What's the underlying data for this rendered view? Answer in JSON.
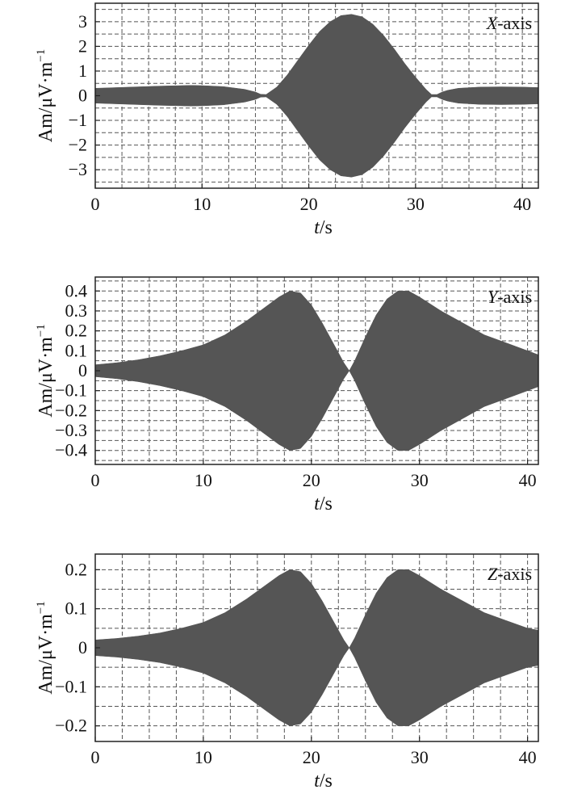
{
  "chart_data": [
    {
      "type": "area",
      "legend": {
        "label_italic": "X",
        "label_rest": "-axis",
        "position": "top-right"
      },
      "xlabel": {
        "italic": "t",
        "rest": "/s"
      },
      "ylabel": {
        "text": "Am/μV·m",
        "sup": "−1"
      },
      "xlim": [
        0,
        41.5
      ],
      "ylim": [
        -3.75,
        3.75
      ],
      "xticks": [
        "0",
        "10",
        "20",
        "30",
        "40"
      ],
      "xtick_values": [
        0,
        10,
        20,
        30,
        40
      ],
      "yticks": [
        "3",
        "2",
        "1",
        "0",
        "−1",
        "−2",
        "−3"
      ],
      "ytick_values": [
        3,
        2,
        1,
        0,
        -1,
        -2,
        -3
      ],
      "grid": true,
      "color": "#555555",
      "series": [
        {
          "t": [
            0,
            2,
            4,
            6,
            8,
            9,
            10,
            12,
            14,
            15,
            15.5,
            16,
            17,
            18,
            19,
            20,
            21,
            22,
            23,
            24,
            25,
            26,
            27,
            28,
            29,
            30,
            31,
            31.5,
            32,
            32.5,
            33,
            34,
            36,
            38,
            40,
            41.5
          ],
          "envelope": [
            0.3,
            0.33,
            0.36,
            0.39,
            0.41,
            0.42,
            0.41,
            0.37,
            0.26,
            0.15,
            0.06,
            0.05,
            0.35,
            0.85,
            1.45,
            2.05,
            2.6,
            3.0,
            3.25,
            3.3,
            3.2,
            2.9,
            2.45,
            1.9,
            1.3,
            0.75,
            0.25,
            0.05,
            0.05,
            0.15,
            0.22,
            0.3,
            0.35,
            0.36,
            0.35,
            0.33
          ]
        }
      ]
    },
    {
      "type": "area",
      "legend": {
        "label_italic": "Y",
        "label_rest": "-axis",
        "position": "top-right"
      },
      "xlabel": {
        "italic": "t",
        "rest": "/s"
      },
      "ylabel": {
        "text": "Am/μV·m",
        "sup": "−1"
      },
      "xlim": [
        0,
        41
      ],
      "ylim": [
        -0.47,
        0.47
      ],
      "xticks": [
        "0",
        "10",
        "20",
        "30",
        "40"
      ],
      "xtick_values": [
        0,
        10,
        20,
        30,
        40
      ],
      "yticks": [
        "0.4",
        "0.3",
        "0.2",
        "0.1",
        "0",
        "−0.1",
        "−0.2",
        "−0.3",
        "−0.4"
      ],
      "ytick_values": [
        0.4,
        0.3,
        0.2,
        0.1,
        0,
        -0.1,
        -0.2,
        -0.3,
        -0.4
      ],
      "grid": true,
      "color": "#555555",
      "series": [
        {
          "t": [
            0,
            2,
            4,
            6,
            8,
            10,
            12,
            14,
            16,
            17,
            18,
            19,
            20,
            21,
            22,
            23,
            23.5,
            24,
            25,
            26,
            27,
            28,
            29,
            30,
            32,
            34,
            36,
            38,
            40,
            41
          ],
          "envelope": [
            0.03,
            0.04,
            0.055,
            0.075,
            0.1,
            0.13,
            0.18,
            0.25,
            0.33,
            0.37,
            0.4,
            0.39,
            0.33,
            0.24,
            0.14,
            0.04,
            0.0,
            0.05,
            0.17,
            0.28,
            0.36,
            0.4,
            0.4,
            0.37,
            0.3,
            0.24,
            0.18,
            0.14,
            0.1,
            0.08
          ]
        }
      ]
    },
    {
      "type": "area",
      "legend": {
        "label_italic": "Z",
        "label_rest": "-axis",
        "position": "top-right"
      },
      "xlabel": {
        "italic": "t",
        "rest": "/s"
      },
      "ylabel": {
        "text": "Am/μV·m",
        "sup": "−1"
      },
      "xlim": [
        0,
        41
      ],
      "ylim": [
        -0.24,
        0.24
      ],
      "xticks": [
        "0",
        "10",
        "20",
        "30",
        "40"
      ],
      "xtick_values": [
        0,
        10,
        20,
        30,
        40
      ],
      "yticks": [
        "0.2",
        "0.1",
        "0",
        "−0.1",
        "−0.2"
      ],
      "ytick_values": [
        0.2,
        0.1,
        0,
        -0.1,
        -0.2
      ],
      "grid": true,
      "color": "#555555",
      "series": [
        {
          "t": [
            0,
            2,
            4,
            6,
            8,
            10,
            12,
            14,
            16,
            17,
            18,
            19,
            20,
            21,
            22,
            23,
            23.5,
            24,
            25,
            26,
            27,
            28,
            29,
            30,
            32,
            34,
            36,
            38,
            40,
            41
          ],
          "envelope": [
            0.02,
            0.024,
            0.03,
            0.038,
            0.05,
            0.065,
            0.09,
            0.125,
            0.165,
            0.185,
            0.2,
            0.195,
            0.165,
            0.12,
            0.07,
            0.02,
            0.0,
            0.025,
            0.085,
            0.14,
            0.18,
            0.2,
            0.2,
            0.185,
            0.15,
            0.12,
            0.09,
            0.07,
            0.05,
            0.045
          ]
        }
      ]
    }
  ]
}
